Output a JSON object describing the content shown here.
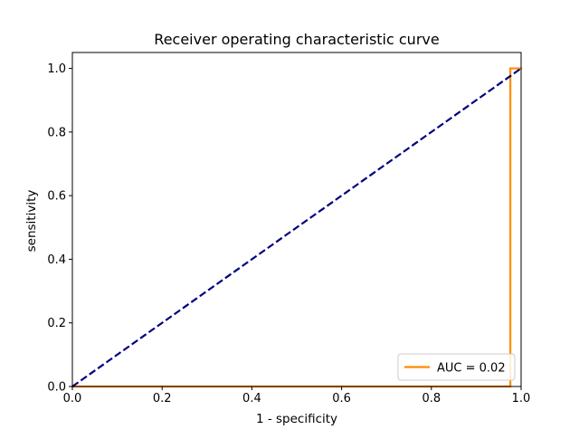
{
  "chart_data": {
    "type": "line",
    "title": "Receiver operating characteristic curve",
    "xlabel": "1 - specificity",
    "ylabel": "sensitivity",
    "xlim": [
      0.0,
      1.0
    ],
    "ylim": [
      0.0,
      1.05
    ],
    "x_ticks": [
      "0.0",
      "0.2",
      "0.4",
      "0.6",
      "0.8",
      "1.0"
    ],
    "y_ticks": [
      "0.0",
      "0.2",
      "0.4",
      "0.6",
      "0.8",
      "1.0"
    ],
    "grid": false,
    "legend_position": "lower right",
    "series": [
      {
        "name": "AUC = 0.02",
        "color": "#ff8c00",
        "style": "solid",
        "x": [
          0.0,
          0.976,
          0.976,
          1.0
        ],
        "y": [
          0.0,
          0.0,
          1.0,
          1.0
        ]
      },
      {
        "color": "#000080",
        "style": "dashed",
        "x": [
          0.0,
          1.0
        ],
        "y": [
          0.0,
          1.0
        ]
      }
    ]
  }
}
